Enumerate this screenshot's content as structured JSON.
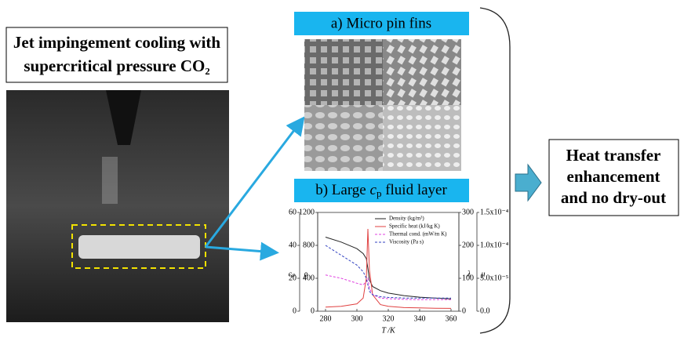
{
  "photo_title": [
    "Jet impingement cooling with",
    "supercritical pressure CO₂"
  ],
  "panel_a": "a) Micro pin fins",
  "panel_b": [
    "b) Large ",
    "c",
    "p",
    " fluid layer"
  ],
  "result": [
    "Heat transfer",
    "enhancement",
    "and no dry-out"
  ],
  "chart_data": {
    "type": "line",
    "xlabel": "T /K",
    "x": [
      280,
      290,
      300,
      304,
      306,
      307,
      308,
      310,
      315,
      320,
      330,
      340,
      350,
      360
    ],
    "xlim": [
      275,
      365
    ],
    "xticks": [
      280,
      300,
      320,
      340,
      360
    ],
    "yaxes": [
      {
        "label": "cₚ",
        "ylim": [
          0,
          60
        ],
        "yticks": [
          0,
          20,
          40,
          60
        ]
      },
      {
        "label": "ρ",
        "ylim": [
          0,
          1200
        ],
        "yticks": [
          0,
          400,
          800,
          1200
        ]
      },
      {
        "label": "λ",
        "ylim": [
          0,
          300
        ],
        "yticks": [
          0,
          100,
          200,
          300
        ]
      },
      {
        "label": "μ",
        "ylim": [
          0,
          0.00015
        ],
        "yticks": [
          {
            "value": 0,
            "label": "0.0"
          },
          {
            "value": 5e-05,
            "label": "5.0x10⁻⁵"
          },
          {
            "value": 0.0001,
            "label": "1.0x10⁻⁴"
          },
          {
            "value": 0.00015,
            "label": "1.5x10⁻⁴"
          }
        ]
      }
    ],
    "legend": "upper right",
    "series": [
      {
        "name": "Density (kg/m³)",
        "color": "#222222",
        "dash": false,
        "axis": 1,
        "values": [
          900,
          840,
          760,
          700,
          640,
          520,
          380,
          300,
          250,
          220,
          190,
          170,
          160,
          150
        ]
      },
      {
        "name": "Specific heat (kJ/kg K)",
        "color": "#e04040",
        "dash": false,
        "axis": 0,
        "values": [
          2.5,
          3,
          4.5,
          8,
          20,
          50,
          25,
          10,
          4,
          3,
          2.2,
          2,
          1.8,
          1.7
        ]
      },
      {
        "name": "Thermal cond. (mW/m K)",
        "color": "#e040e0",
        "dash": true,
        "axis": 2,
        "values": [
          110,
          100,
          85,
          80,
          90,
          100,
          70,
          50,
          40,
          38,
          36,
          35,
          35,
          35
        ]
      },
      {
        "name": "Viscosity (Pa s)",
        "color": "#3040c0",
        "dash": true,
        "axis": 3,
        "values": [
          0.0001,
          8.5e-05,
          7e-05,
          6e-05,
          5e-05,
          4e-05,
          3e-05,
          2.5e-05,
          2.2e-05,
          2.1e-05,
          2e-05,
          2e-05,
          2e-05,
          2e-05
        ]
      }
    ]
  }
}
